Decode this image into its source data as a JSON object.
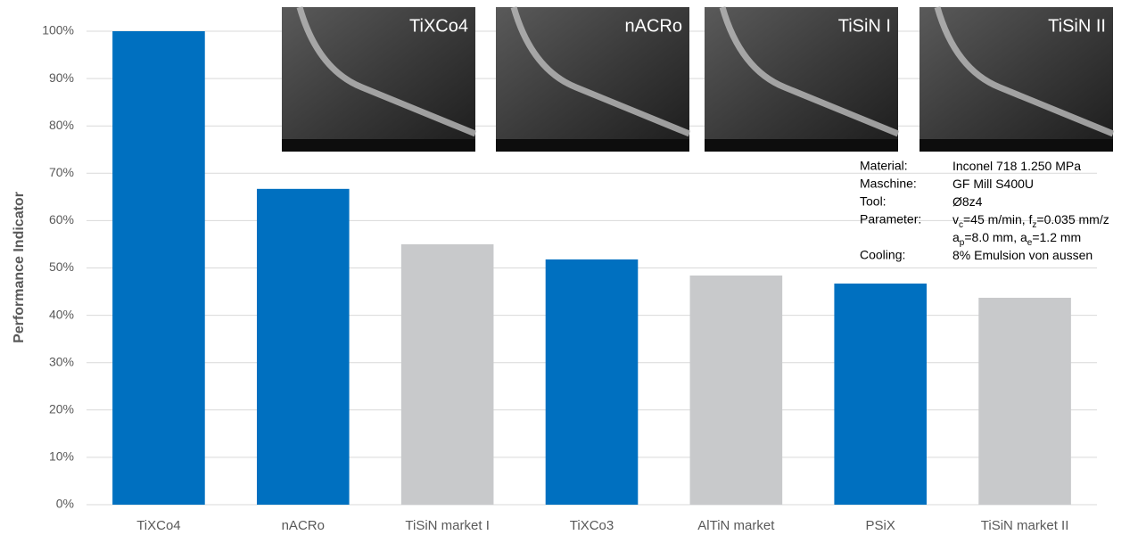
{
  "chart_data": {
    "type": "bar",
    "y_label": "Performance Indicator",
    "categories": [
      "TiXCo4",
      "nACRo",
      "TiSiN market I",
      "TiXCo3",
      "AlTiN market",
      "PSiX",
      "TiSiN market II"
    ],
    "values": [
      100,
      66.7,
      55,
      51.8,
      48.4,
      46.7,
      43.7
    ],
    "colors": [
      "#0070c0",
      "#0070c0",
      "#c8c9cb",
      "#0070c0",
      "#c8c9cb",
      "#0070c0",
      "#c8c9cb"
    ],
    "ylim": [
      0,
      100
    ],
    "yticks": [
      {
        "value": 0,
        "label": "0%"
      },
      {
        "value": 10,
        "label": "10%"
      },
      {
        "value": 20,
        "label": "20%"
      },
      {
        "value": 30,
        "label": "30%"
      },
      {
        "value": 40,
        "label": "40%"
      },
      {
        "value": 50,
        "label": "50%"
      },
      {
        "value": 60,
        "label": "60%"
      },
      {
        "value": 70,
        "label": "70%"
      },
      {
        "value": 80,
        "label": "80%"
      },
      {
        "value": 90,
        "label": "90%"
      },
      {
        "value": 100,
        "label": "100%"
      }
    ],
    "grid": true
  },
  "images": [
    {
      "label": "TiXCo4"
    },
    {
      "label": "nACRo"
    },
    {
      "label": "TiSiN I"
    },
    {
      "label": "TiSiN II"
    }
  ],
  "notes": {
    "rows": [
      {
        "label": "Material:",
        "lines": [
          [
            {
              "text": "Inconel 718 1.250 MPa"
            }
          ]
        ]
      },
      {
        "label": "Maschine:",
        "lines": [
          [
            {
              "text": "GF Mill S400U"
            }
          ]
        ]
      },
      {
        "label": "Tool:",
        "lines": [
          [
            {
              "text": "Ø8z4"
            }
          ]
        ]
      },
      {
        "label": "Parameter:",
        "lines": [
          [
            {
              "text": "v"
            },
            {
              "text": "c",
              "sub": true
            },
            {
              "text": "=45 m/min, f"
            },
            {
              "text": "z",
              "sub": true
            },
            {
              "text": "=0.035 mm/z"
            }
          ],
          [
            {
              "text": "a"
            },
            {
              "text": "p",
              "sub": true
            },
            {
              "text": "=8.0 mm, a"
            },
            {
              "text": "e",
              "sub": true
            },
            {
              "text": "=1.2 mm"
            }
          ]
        ]
      },
      {
        "label": "Cooling:",
        "lines": [
          [
            {
              "text": "8% Emulsion von aussen"
            }
          ]
        ]
      }
    ]
  }
}
